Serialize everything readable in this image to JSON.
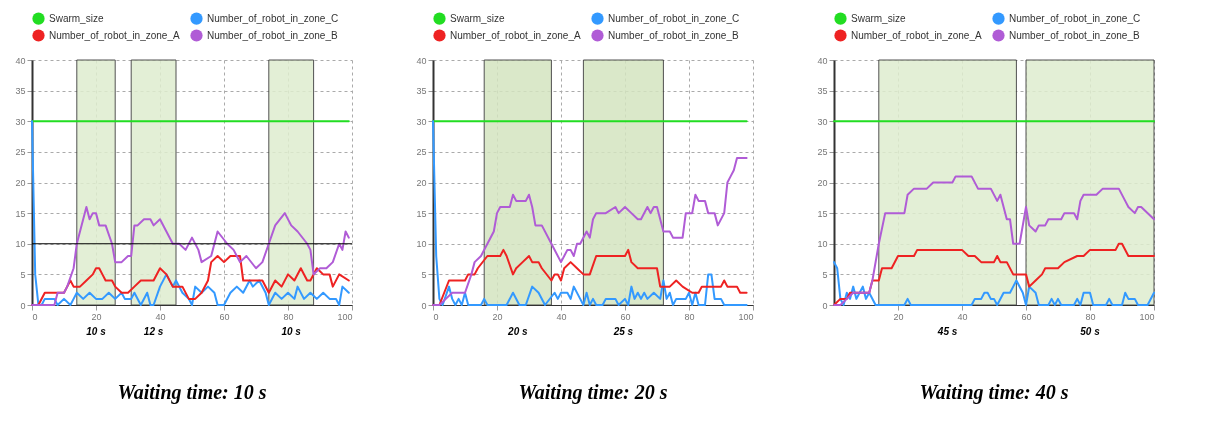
{
  "chart_data": [
    {
      "type": "line",
      "title": "Waiting time: 10 s",
      "xlim": [
        0,
        100
      ],
      "ylim": [
        0,
        40
      ],
      "xticks": [
        0,
        20,
        40,
        60,
        80,
        100
      ],
      "yticks": [
        0,
        5,
        10,
        15,
        20,
        25,
        30,
        35,
        40
      ],
      "grid": true,
      "legend": "top",
      "marker": "none",
      "series": [
        {
          "name": "Swarm_size",
          "color": "#22dd22",
          "x": [
            0,
            99
          ],
          "values": [
            30,
            30
          ]
        },
        {
          "name": "Number_of_robot_in_zone_C",
          "color": "#3399ff",
          "x": [
            0,
            1,
            2,
            3,
            4,
            7,
            8,
            10,
            12,
            13,
            14,
            16,
            18,
            20,
            22,
            24,
            26,
            28,
            29,
            31,
            32,
            34,
            36,
            37,
            38,
            40,
            42,
            44,
            45,
            47,
            49,
            50,
            51,
            53,
            55,
            57,
            58,
            60,
            62,
            64,
            66,
            68,
            69,
            71,
            73,
            74,
            76,
            78,
            80,
            82,
            83,
            85,
            87,
            89,
            91,
            93,
            95,
            96,
            97,
            99
          ],
          "values": [
            30,
            5,
            0,
            0,
            1,
            1,
            0,
            1,
            0,
            1,
            2,
            1,
            2,
            1,
            1,
            2,
            1,
            2,
            1,
            1,
            2,
            0,
            2,
            0,
            0,
            3,
            5,
            3,
            4,
            2,
            1,
            0,
            3,
            2,
            3,
            2,
            0,
            0,
            2,
            3,
            2,
            4,
            3,
            4,
            2,
            0,
            2,
            1,
            2,
            1,
            3,
            1,
            2,
            1,
            2,
            1,
            1,
            0,
            3,
            2
          ]
        },
        {
          "name": "Number_of_robot_in_zone_A",
          "color": "#ee2222",
          "x": [
            0,
            2,
            4,
            10,
            11,
            12,
            13,
            15,
            17,
            19,
            20,
            21,
            22,
            23,
            25,
            26,
            28,
            30,
            32,
            34,
            38,
            40,
            42,
            44,
            47,
            49,
            51,
            53,
            55,
            56,
            58,
            60,
            62,
            65,
            66,
            72,
            74,
            76,
            78,
            80,
            82,
            84,
            86,
            87,
            89,
            91,
            93,
            94,
            96,
            99
          ],
          "values": [
            0,
            0,
            2,
            2,
            3,
            4,
            3,
            3,
            4,
            5,
            6,
            6,
            5,
            4,
            4,
            3,
            2,
            2,
            3,
            4,
            4,
            6,
            5,
            3,
            3,
            1,
            1,
            2,
            4,
            7,
            8,
            7,
            8,
            8,
            4,
            4,
            2,
            4,
            3,
            5,
            4,
            6,
            4,
            4,
            6,
            5,
            5,
            3,
            5,
            4
          ]
        },
        {
          "name": "Number_of_robot_in_zone_B",
          "color": "#b05cd6",
          "x": [
            0,
            7,
            8,
            10,
            11,
            13,
            14,
            16,
            17,
            18,
            19,
            20,
            21,
            23,
            25,
            26,
            28,
            30,
            31,
            32,
            33,
            35,
            37,
            38,
            40,
            42,
            44,
            46,
            48,
            50,
            52,
            53,
            56,
            58,
            61,
            63,
            65,
            67,
            70,
            72,
            74,
            76,
            79,
            81,
            83,
            86,
            87,
            88,
            90,
            92,
            94,
            96,
            97,
            98,
            99
          ],
          "values": [
            0,
            0,
            2,
            2,
            3,
            6,
            10,
            14,
            16,
            14,
            15,
            15,
            13,
            13,
            10,
            7,
            7,
            8,
            8,
            13,
            13,
            14,
            14,
            13,
            14,
            12,
            10,
            10,
            9,
            11,
            9,
            7,
            8,
            12,
            10,
            9,
            7,
            8,
            6,
            7,
            10,
            13,
            15,
            13,
            12,
            10,
            9,
            5,
            6,
            6,
            7,
            10,
            9,
            12,
            11
          ]
        }
      ],
      "bands": [
        {
          "axis": "x",
          "from": 14,
          "to": 26,
          "label": "10 s",
          "color": "#dfedcf"
        },
        {
          "axis": "x",
          "from": 31,
          "to": 45,
          "label": "12 s",
          "color": "#dfedcf"
        },
        {
          "axis": "x",
          "from": 74,
          "to": 88,
          "label": "10 s",
          "color": "#dfedcf"
        }
      ],
      "ref_lines": [
        {
          "axis": "y",
          "value": 10,
          "color": "#000000"
        }
      ]
    },
    {
      "type": "line",
      "title": "Waiting time: 20 s",
      "xlim": [
        0,
        100
      ],
      "ylim": [
        0,
        40
      ],
      "xticks": [
        0,
        20,
        40,
        60,
        80,
        100
      ],
      "yticks": [
        0,
        5,
        10,
        15,
        20,
        25,
        30,
        35,
        40
      ],
      "grid": true,
      "legend": "top",
      "marker": "none",
      "series": [
        {
          "name": "Swarm_size",
          "color": "#22dd22",
          "x": [
            0,
            98
          ],
          "values": [
            30,
            30
          ]
        },
        {
          "name": "Number_of_robot_in_zone_C",
          "color": "#3399ff",
          "x": [
            0,
            1,
            2,
            3,
            5,
            6,
            7,
            8,
            9,
            10,
            11,
            15,
            16,
            17,
            23,
            25,
            27,
            29,
            31,
            33,
            35,
            38,
            39,
            40,
            42,
            43,
            44,
            46,
            47,
            48,
            49,
            50,
            51,
            53,
            54,
            57,
            58,
            60,
            61,
            62,
            63,
            64,
            65,
            66,
            67,
            69,
            71,
            72,
            73,
            74,
            75,
            76,
            79,
            80,
            81,
            82,
            83,
            85,
            86,
            87,
            88,
            90,
            91,
            98
          ],
          "values": [
            30,
            8,
            1,
            0,
            3,
            1,
            0,
            1,
            0,
            2,
            0,
            0,
            1,
            0,
            0,
            2,
            0,
            0,
            3,
            2,
            0,
            2,
            1,
            2,
            2,
            1,
            3,
            1,
            0,
            2,
            0,
            1,
            0,
            0,
            1,
            1,
            0,
            1,
            0,
            3,
            1,
            2,
            1,
            2,
            1,
            2,
            1,
            4,
            1,
            2,
            0,
            1,
            1,
            2,
            0,
            2,
            0,
            0,
            5,
            5,
            1,
            1,
            0,
            0
          ]
        },
        {
          "name": "Number_of_robot_in_zone_A",
          "color": "#ee2222",
          "x": [
            0,
            2,
            5,
            10,
            11,
            13,
            14,
            17,
            21,
            22,
            23,
            25,
            26,
            28,
            30,
            31,
            33,
            34,
            37,
            38,
            39,
            40,
            41,
            43,
            45,
            47,
            49,
            51,
            60,
            61,
            62,
            64,
            70,
            71,
            74,
            76,
            78,
            81,
            83,
            84,
            90,
            91,
            92,
            95,
            96,
            98
          ],
          "values": [
            0,
            0,
            4,
            4,
            5,
            5,
            6,
            8,
            8,
            9,
            8,
            5,
            6,
            7,
            8,
            7,
            7,
            6,
            4,
            5,
            5,
            4,
            6,
            7,
            6,
            5,
            5,
            8,
            8,
            9,
            7,
            6,
            6,
            3,
            3,
            4,
            3,
            2,
            2,
            3,
            3,
            4,
            3,
            3,
            2,
            2
          ]
        },
        {
          "name": "Number_of_robot_in_zone_B",
          "color": "#b05cd6",
          "x": [
            0,
            2,
            4,
            6,
            10,
            12,
            13,
            15,
            17,
            19,
            20,
            21,
            24,
            25,
            26,
            29,
            30,
            31,
            32,
            34,
            37,
            40,
            42,
            43,
            44,
            45,
            46,
            48,
            49,
            50,
            51,
            54,
            57,
            58,
            60,
            62,
            64,
            65,
            67,
            68,
            69,
            70,
            72,
            74,
            75,
            78,
            79,
            81,
            82,
            83,
            85,
            86,
            88,
            89,
            91,
            92,
            93,
            94,
            95,
            98
          ],
          "values": [
            0,
            0,
            1,
            2,
            2,
            5,
            7,
            8,
            10,
            12,
            15,
            16,
            16,
            18,
            17,
            17,
            18,
            16,
            13,
            13,
            10,
            7,
            9,
            9,
            8,
            10,
            10,
            12,
            11,
            14,
            15,
            15,
            16,
            15,
            16,
            15,
            14,
            14,
            16,
            15,
            16,
            16,
            12,
            12,
            11,
            11,
            15,
            15,
            18,
            17,
            17,
            15,
            15,
            13,
            15,
            20,
            21,
            22,
            24,
            24
          ]
        }
      ],
      "bands": [
        {
          "axis": "x",
          "from": 16,
          "to": 37,
          "label": "20 s",
          "color": "#d4e4c0"
        },
        {
          "axis": "x",
          "from": 47,
          "to": 72,
          "label": "25 s",
          "color": "#d4e4c0"
        }
      ]
    },
    {
      "type": "line",
      "title": "Waiting time: 40 s",
      "xlim": [
        0,
        100
      ],
      "ylim": [
        0,
        40
      ],
      "xticks": [
        20,
        40,
        60,
        80,
        100
      ],
      "yticks": [
        0,
        5,
        10,
        15,
        20,
        25,
        30,
        35,
        40
      ],
      "grid": true,
      "legend": "top",
      "marker": "none",
      "series": [
        {
          "name": "Swarm_size",
          "color": "#22dd22",
          "x": [
            0,
            100
          ],
          "values": [
            30,
            30
          ]
        },
        {
          "name": "Number_of_robot_in_zone_C",
          "color": "#3399ff",
          "x": [
            0,
            1,
            2,
            3,
            4,
            5,
            6,
            7,
            8,
            9,
            10,
            11,
            13,
            22,
            23,
            24,
            43,
            44,
            46,
            47,
            48,
            49,
            50,
            51,
            53,
            55,
            56,
            57,
            59,
            60,
            61,
            63,
            64,
            67,
            68,
            69,
            70,
            71,
            75,
            76,
            77,
            78,
            80,
            81,
            85,
            86,
            87,
            90,
            91,
            92,
            94,
            95,
            98,
            100
          ],
          "values": [
            7,
            6,
            1,
            0,
            2,
            1,
            3,
            1,
            2,
            3,
            1,
            2,
            0,
            0,
            1,
            0,
            0,
            1,
            1,
            2,
            2,
            1,
            1,
            0,
            2,
            2,
            3,
            4,
            2,
            0,
            3,
            2,
            0,
            0,
            1,
            0,
            1,
            0,
            0,
            1,
            0,
            2,
            2,
            0,
            0,
            1,
            0,
            0,
            2,
            1,
            1,
            0,
            0,
            2
          ]
        },
        {
          "name": "Number_of_robot_in_zone_A",
          "color": "#ee2222",
          "x": [
            0,
            2,
            4,
            5,
            11,
            12,
            14,
            15,
            18,
            20,
            25,
            26,
            40,
            42,
            44,
            46,
            50,
            51,
            52,
            54,
            56,
            60,
            61,
            63,
            65,
            66,
            70,
            72,
            76,
            78,
            80,
            88,
            89,
            90,
            92,
            100
          ],
          "values": [
            0,
            1,
            1,
            2,
            2,
            4,
            4,
            6,
            6,
            8,
            8,
            9,
            9,
            8,
            8,
            7,
            7,
            8,
            7,
            7,
            5,
            5,
            3,
            4,
            5,
            6,
            6,
            7,
            8,
            8,
            9,
            9,
            10,
            10,
            8,
            8
          ]
        },
        {
          "name": "Number_of_robot_in_zone_B",
          "color": "#b05cd6",
          "x": [
            0,
            2,
            4,
            6,
            11,
            12,
            14,
            16,
            22,
            23,
            25,
            29,
            31,
            37,
            38,
            43,
            45,
            49,
            51,
            52,
            54,
            55,
            56,
            58,
            60,
            61,
            63,
            64,
            66,
            67,
            71,
            72,
            75,
            76,
            77,
            78,
            82,
            84,
            89,
            91,
            92,
            94,
            95,
            96,
            100
          ],
          "values": [
            0,
            0,
            1,
            2,
            2,
            4,
            10,
            15,
            15,
            18,
            19,
            19,
            20,
            20,
            21,
            21,
            19,
            19,
            17,
            18,
            14,
            14,
            10,
            10,
            16,
            13,
            12,
            13,
            13,
            14,
            14,
            15,
            15,
            14,
            17,
            18,
            18,
            19,
            19,
            17,
            16,
            15,
            16,
            16,
            14
          ]
        }
      ],
      "bands": [
        {
          "axis": "x",
          "from": 14,
          "to": 57,
          "label": "45 s",
          "color": "#dfedcf"
        },
        {
          "axis": "x",
          "from": 60,
          "to": 100,
          "label": "50 s",
          "color": "#dfedcf"
        }
      ]
    }
  ]
}
